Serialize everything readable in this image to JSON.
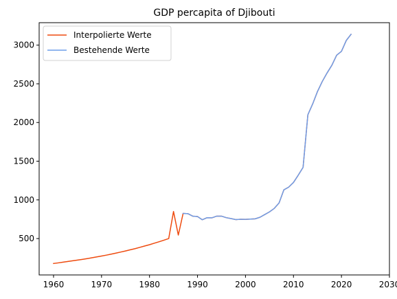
{
  "chart_data": {
    "type": "line",
    "title": "GDP percapita of Djibouti",
    "xlabel": "",
    "ylabel": "",
    "xlim": [
      1957,
      2030
    ],
    "ylim": [
      30,
      3290
    ],
    "xticks": [
      1960,
      1970,
      1980,
      1990,
      2000,
      2010,
      2020,
      2030
    ],
    "yticks": [
      500,
      1000,
      1500,
      2000,
      2500,
      3000
    ],
    "grid": false,
    "legend": {
      "placement": "top-left"
    },
    "series": [
      {
        "name": "Interpolierte Werte",
        "color": "#ee4a0e",
        "points": [
          [
            1960,
            178
          ],
          [
            1961,
            186
          ],
          [
            1962,
            195
          ],
          [
            1963,
            204
          ],
          [
            1964,
            213
          ],
          [
            1965,
            222
          ],
          [
            1966,
            231
          ],
          [
            1967,
            241
          ],
          [
            1968,
            252
          ],
          [
            1969,
            263
          ],
          [
            1970,
            274
          ],
          [
            1971,
            286
          ],
          [
            1972,
            299
          ],
          [
            1973,
            312
          ],
          [
            1974,
            326
          ],
          [
            1975,
            340
          ],
          [
            1976,
            355
          ],
          [
            1977,
            370
          ],
          [
            1978,
            387
          ],
          [
            1979,
            404
          ],
          [
            1980,
            421
          ],
          [
            1981,
            440
          ],
          [
            1982,
            459
          ],
          [
            1983,
            479
          ],
          [
            1984,
            500
          ],
          [
            1985,
            850
          ],
          [
            1986,
            545
          ],
          [
            1987,
            825
          ],
          [
            1988,
            822
          ],
          [
            1989,
            790
          ],
          [
            1990,
            785
          ],
          [
            1991,
            743
          ],
          [
            1992,
            770
          ],
          [
            1993,
            768
          ],
          [
            1994,
            790
          ],
          [
            1995,
            790
          ],
          [
            1996,
            770
          ],
          [
            1997,
            758
          ],
          [
            1998,
            745
          ],
          [
            1999,
            750
          ],
          [
            2000,
            748
          ],
          [
            2001,
            752
          ],
          [
            2002,
            755
          ],
          [
            2003,
            775
          ],
          [
            2004,
            810
          ],
          [
            2005,
            845
          ],
          [
            2006,
            890
          ],
          [
            2007,
            960
          ],
          [
            2008,
            1130
          ],
          [
            2009,
            1165
          ],
          [
            2010,
            1225
          ],
          [
            2011,
            1320
          ],
          [
            2012,
            1420
          ],
          [
            2013,
            2100
          ],
          [
            2014,
            2240
          ],
          [
            2015,
            2400
          ],
          [
            2016,
            2530
          ],
          [
            2017,
            2640
          ],
          [
            2018,
            2740
          ],
          [
            2019,
            2870
          ],
          [
            2020,
            2920
          ],
          [
            2021,
            3060
          ],
          [
            2022,
            3140
          ]
        ]
      },
      {
        "name": "Bestehende Werte",
        "color": "#6d9eea",
        "points": [
          [
            1987,
            825
          ],
          [
            1988,
            822
          ],
          [
            1989,
            790
          ],
          [
            1990,
            785
          ],
          [
            1991,
            743
          ],
          [
            1992,
            770
          ],
          [
            1993,
            768
          ],
          [
            1994,
            790
          ],
          [
            1995,
            790
          ],
          [
            1996,
            770
          ],
          [
            1997,
            758
          ],
          [
            1998,
            745
          ],
          [
            1999,
            750
          ],
          [
            2000,
            748
          ],
          [
            2001,
            752
          ],
          [
            2002,
            755
          ],
          [
            2003,
            775
          ],
          [
            2004,
            810
          ],
          [
            2005,
            845
          ],
          [
            2006,
            890
          ],
          [
            2007,
            960
          ],
          [
            2008,
            1130
          ],
          [
            2009,
            1165
          ],
          [
            2010,
            1225
          ],
          [
            2011,
            1320
          ],
          [
            2012,
            1420
          ],
          [
            2013,
            2100
          ],
          [
            2014,
            2240
          ],
          [
            2015,
            2400
          ],
          [
            2016,
            2530
          ],
          [
            2017,
            2640
          ],
          [
            2018,
            2740
          ],
          [
            2019,
            2870
          ],
          [
            2020,
            2920
          ],
          [
            2021,
            3060
          ],
          [
            2022,
            3140
          ]
        ]
      }
    ]
  }
}
